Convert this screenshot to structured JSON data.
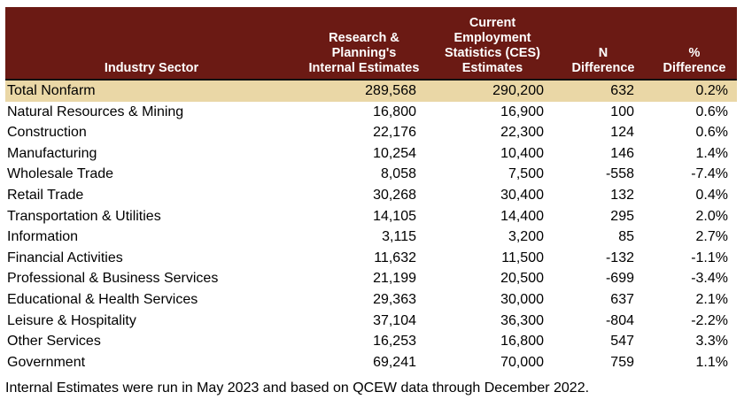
{
  "headers": [
    "Industry Sector",
    "Research & Planning's Internal Estimates",
    "Current Employment Statistics (CES) Estimates",
    "N Difference",
    "% Difference"
  ],
  "rows": [
    [
      "Total Nonfarm",
      "289,568",
      "290,200",
      "632",
      "0.2%"
    ],
    [
      "Natural Resources & Mining",
      "16,800",
      "16,900",
      "100",
      "0.6%"
    ],
    [
      "Construction",
      "22,176",
      "22,300",
      "124",
      "0.6%"
    ],
    [
      "Manufacturing",
      "10,254",
      "10,400",
      "146",
      "1.4%"
    ],
    [
      "Wholesale Trade",
      "8,058",
      "7,500",
      "-558",
      "-7.4%"
    ],
    [
      "Retail Trade",
      "30,268",
      "30,400",
      "132",
      "0.4%"
    ],
    [
      "Transportation & Utilities",
      "14,105",
      "14,400",
      "295",
      "2.0%"
    ],
    [
      "Information",
      "3,115",
      "3,200",
      "85",
      "2.7%"
    ],
    [
      "Financial Activities",
      "11,632",
      "11,500",
      "-132",
      "-1.1%"
    ],
    [
      "Professional & Business Services",
      "21,199",
      "20,500",
      "-699",
      "-3.4%"
    ],
    [
      "Educational & Health Services",
      "29,363",
      "30,000",
      "637",
      "2.1%"
    ],
    [
      "Leisure & Hospitality",
      "37,104",
      "36,300",
      "-804",
      "-2.2%"
    ],
    [
      "Other Services",
      "16,253",
      "16,800",
      "547",
      "3.3%"
    ],
    [
      "Government",
      "69,241",
      "70,000",
      "759",
      "1.1%"
    ]
  ],
  "note": "Internal Estimates were run in May 2023 and based on QCEW data through December 2022.",
  "colors": {
    "header_bg": "#6b1a14",
    "header_text": "#ffffff",
    "total_row_bg": "#ead7a6"
  }
}
